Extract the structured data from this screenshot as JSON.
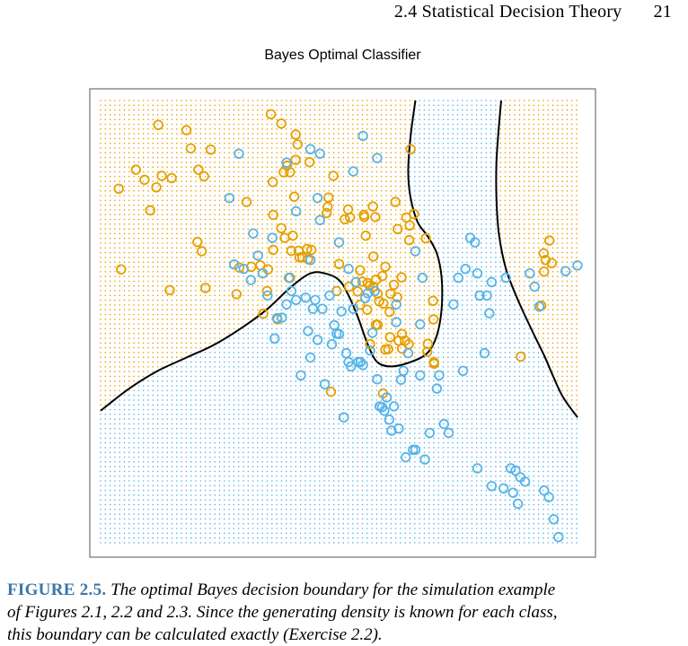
{
  "header": {
    "section": "2.4 Statistical Decision Theory",
    "page_number": "21"
  },
  "caption": {
    "label": "FIGURE 2.5.",
    "lines": [
      "The optimal Bayes decision boundary for the simulation example",
      "of Figures 2.1, 2.2 and 2.3. Since the generating density is known for each class,",
      "this boundary can be calculated exactly (Exercise 2.2)."
    ]
  },
  "colors": {
    "orange": "#e69f00",
    "blue": "#56b4e9",
    "boundary": "#000000",
    "frame": "#555555"
  },
  "chart_data": {
    "type": "scatter",
    "title": "Bayes Optimal Classifier",
    "xlabel": "",
    "ylabel": "",
    "xlim": [
      0,
      100
    ],
    "ylim": [
      0,
      100
    ],
    "grid": false,
    "legend": "none",
    "series": [
      {
        "color_key": "orange",
        "points": [
          [
            3.8,
            80.1
          ],
          [
            4.3,
            61.9
          ],
          [
            7.4,
            84.4
          ],
          [
            9.2,
            82.1
          ],
          [
            10.4,
            75.2
          ],
          [
            11.7,
            80.4
          ],
          [
            12.1,
            94.5
          ],
          [
            12.8,
            83.0
          ],
          [
            14.5,
            57.2
          ],
          [
            14.9,
            82.5
          ],
          [
            18.0,
            93.3
          ],
          [
            18.9,
            89.2
          ],
          [
            20.3,
            68.1
          ],
          [
            20.5,
            84.4
          ],
          [
            21.2,
            66.0
          ],
          [
            21.7,
            82.9
          ],
          [
            22.0,
            57.7
          ],
          [
            23.1,
            88.9
          ],
          [
            28.5,
            56.3
          ],
          [
            29.1,
            62.3
          ],
          [
            30.6,
            77.1
          ],
          [
            31.6,
            62.5
          ],
          [
            33.5,
            62.8
          ],
          [
            34.1,
            51.9
          ],
          [
            34.9,
            57.0
          ],
          [
            35.1,
            61.9
          ],
          [
            35.7,
            96.9
          ],
          [
            36.1,
            81.6
          ],
          [
            36.2,
            66.3
          ],
          [
            36.2,
            74.2
          ],
          [
            37.1,
            50.6
          ],
          [
            37.9,
            71.2
          ],
          [
            37.9,
            94.8
          ],
          [
            38.4,
            83.8
          ],
          [
            38.6,
            69.0
          ],
          [
            39.1,
            85.3
          ],
          [
            39.7,
            83.8
          ],
          [
            39.7,
            60.0
          ],
          [
            40.0,
            66.1
          ],
          [
            40.3,
            69.5
          ],
          [
            40.6,
            78.3
          ],
          [
            40.9,
            86.6
          ],
          [
            40.9,
            92.3
          ],
          [
            41.3,
            90.1
          ],
          [
            41.5,
            66.1
          ],
          [
            41.7,
            64.6
          ],
          [
            42.3,
            64.6
          ],
          [
            43.3,
            66.5
          ],
          [
            43.5,
            64.2
          ],
          [
            43.8,
            86.1
          ],
          [
            44.2,
            66.3
          ],
          [
            47.4,
            74.6
          ],
          [
            47.6,
            76.0
          ],
          [
            47.8,
            78.1
          ],
          [
            48.3,
            34.3
          ],
          [
            48.8,
            83.0
          ],
          [
            49.5,
            57.0
          ],
          [
            50.0,
            63.1
          ],
          [
            51.2,
            73.2
          ],
          [
            51.9,
            75.4
          ],
          [
            52.1,
            58.0
          ],
          [
            52.3,
            73.6
          ],
          [
            53.9,
            56.9
          ],
          [
            54.4,
            61.7
          ],
          [
            54.4,
            53.9
          ],
          [
            54.9,
            59.1
          ],
          [
            55.2,
            74.2
          ],
          [
            55.3,
            73.7
          ],
          [
            55.6,
            69.5
          ],
          [
            55.9,
            52.8
          ],
          [
            56.0,
            58.8
          ],
          [
            56.4,
            58.2
          ],
          [
            56.5,
            45.0
          ],
          [
            57.1,
            76.1
          ],
          [
            57.2,
            64.8
          ],
          [
            57.2,
            58.0
          ],
          [
            57.6,
            73.7
          ],
          [
            57.7,
            49.4
          ],
          [
            57.8,
            59.6
          ],
          [
            58.1,
            56.4
          ],
          [
            58.1,
            49.4
          ],
          [
            58.4,
            54.7
          ],
          [
            59.1,
            60.4
          ],
          [
            59.2,
            33.9
          ],
          [
            59.3,
            54.2
          ],
          [
            59.7,
            62.5
          ],
          [
            59.7,
            43.8
          ],
          [
            60.3,
            43.9
          ],
          [
            60.6,
            52.3
          ],
          [
            60.7,
            46.6
          ],
          [
            60.8,
            56.4
          ],
          [
            61.5,
            58.4
          ],
          [
            61.8,
            77.1
          ],
          [
            62.2,
            55.6
          ],
          [
            62.3,
            71.0
          ],
          [
            62.5,
            45.8
          ],
          [
            63.1,
            60.1
          ],
          [
            63.2,
            44.0
          ],
          [
            63.2,
            47.3
          ],
          [
            63.8,
            45.8
          ],
          [
            64.1,
            73.6
          ],
          [
            64.6,
            45.0
          ],
          [
            64.7,
            68.5
          ],
          [
            64.8,
            71.8
          ],
          [
            65.0,
            89.0
          ],
          [
            65.7,
            74.4
          ],
          [
            68.2,
            68.9
          ],
          [
            68.6,
            45.1
          ],
          [
            68.5,
            43.3
          ],
          [
            69.7,
            54.8
          ],
          [
            69.8,
            50.6
          ],
          [
            69.9,
            40.6
          ],
          [
            69.9,
            41.0
          ],
          [
            88.1,
            42.2
          ],
          [
            92.4,
            53.7
          ],
          [
            92.9,
            65.5
          ],
          [
            93.0,
            61.4
          ],
          [
            93.3,
            64.0
          ],
          [
            94.1,
            68.4
          ],
          [
            94.6,
            63.3
          ]
        ]
      },
      {
        "color_key": "blue",
        "points": [
          [
            27.0,
            78.0
          ],
          [
            28.0,
            63.0
          ],
          [
            30.0,
            62.0
          ],
          [
            31.5,
            59.5
          ],
          [
            32.0,
            70.0
          ],
          [
            33.0,
            65.0
          ],
          [
            34.0,
            61.0
          ],
          [
            35.0,
            56.0
          ],
          [
            36.5,
            46.3
          ],
          [
            37.0,
            50.9
          ],
          [
            38.0,
            51.0
          ],
          [
            39.0,
            54.0
          ],
          [
            39.5,
            60.0
          ],
          [
            40.0,
            57.0
          ],
          [
            41.0,
            55.0
          ],
          [
            42.0,
            38.0
          ],
          [
            43.0,
            55.5
          ],
          [
            44.0,
            42.0
          ],
          [
            45.0,
            55.0
          ],
          [
            45.5,
            78.0
          ],
          [
            46.0,
            73.0
          ],
          [
            46.5,
            53.0
          ],
          [
            47.0,
            36.0
          ],
          [
            48.5,
            45.0
          ],
          [
            49.0,
            49.3
          ],
          [
            49.5,
            47.4
          ],
          [
            50.0,
            47.3
          ],
          [
            50.5,
            52.4
          ],
          [
            51.0,
            28.5
          ],
          [
            51.5,
            43.0
          ],
          [
            52.0,
            41.0
          ],
          [
            52.5,
            40.0
          ],
          [
            53.0,
            53.0
          ],
          [
            54.0,
            41.0
          ],
          [
            54.5,
            41.0
          ],
          [
            55.0,
            40.3
          ],
          [
            55.5,
            55.4
          ],
          [
            56.0,
            56.5
          ],
          [
            56.5,
            43.6
          ],
          [
            57.0,
            47.6
          ],
          [
            58.0,
            37.1
          ],
          [
            58.5,
            31.0
          ],
          [
            59.0,
            30.8
          ],
          [
            59.5,
            30.0
          ],
          [
            60.0,
            33.0
          ],
          [
            60.5,
            28.0
          ],
          [
            61.0,
            25.5
          ],
          [
            61.5,
            31.0
          ],
          [
            62.5,
            26.0
          ],
          [
            63.0,
            37.0
          ],
          [
            63.5,
            39.0
          ],
          [
            64.0,
            19.5
          ],
          [
            65.5,
            21.2
          ],
          [
            66.0,
            21.2
          ],
          [
            68.0,
            19.0
          ],
          [
            69.0,
            25.0
          ],
          [
            70.5,
            35.0
          ],
          [
            72.0,
            27.0
          ],
          [
            73.0,
            25.0
          ],
          [
            74.0,
            54.0
          ],
          [
            75.0,
            60.0
          ],
          [
            76.0,
            39.0
          ],
          [
            76.5,
            62.0
          ],
          [
            77.5,
            69.0
          ],
          [
            78.5,
            68.0
          ],
          [
            79.0,
            61.0
          ],
          [
            79.5,
            56.0
          ],
          [
            80.5,
            43.0
          ],
          [
            81.0,
            56.0
          ],
          [
            81.5,
            52.0
          ],
          [
            82.0,
            59.0
          ],
          [
            85.0,
            60.0
          ],
          [
            86.0,
            17.0
          ],
          [
            87.0,
            16.5
          ],
          [
            88.0,
            15.0
          ],
          [
            89.0,
            14.0
          ],
          [
            90.0,
            61.0
          ],
          [
            91.0,
            58.0
          ],
          [
            92.0,
            53.5
          ],
          [
            93.0,
            12.0
          ],
          [
            94.0,
            10.5
          ],
          [
            95.0,
            5.5
          ],
          [
            96.0,
            1.5
          ],
          [
            97.5,
            61.5
          ],
          [
            100.0,
            62.8
          ],
          [
            41.0,
            75.0
          ],
          [
            44.0,
            64.0
          ],
          [
            50.0,
            68.0
          ],
          [
            52.0,
            62.0
          ],
          [
            53.5,
            59.0
          ],
          [
            66.0,
            66.0
          ],
          [
            67.5,
            60.0
          ],
          [
            58.0,
            87.0
          ],
          [
            55.0,
            92.0
          ],
          [
            53.0,
            84.0
          ],
          [
            46.0,
            88.0
          ],
          [
            39.0,
            86.0
          ],
          [
            29.0,
            88.0
          ],
          [
            44.0,
            89.0
          ],
          [
            67.0,
            38.0
          ],
          [
            71.0,
            38.0
          ],
          [
            79.0,
            17.0
          ],
          [
            82.0,
            13.0
          ],
          [
            84.5,
            12.5
          ],
          [
            86.5,
            11.5
          ],
          [
            87.5,
            9.0
          ],
          [
            36.0,
            69.0
          ],
          [
            48.0,
            56.0
          ],
          [
            43.5,
            48.0
          ],
          [
            45.5,
            46.0
          ],
          [
            44.5,
            53.0
          ],
          [
            57.5,
            57.0
          ],
          [
            62.0,
            50.0
          ],
          [
            67.0,
            49.5
          ],
          [
            62.0,
            54.0
          ],
          [
            64.5,
            43.0
          ]
        ]
      }
    ],
    "boundary": [
      [
        [
          0.0,
          30.0
        ],
        [
          6.0,
          35.0
        ],
        [
          12.0,
          39.0
        ],
        [
          18.0,
          42.0
        ],
        [
          24.0,
          45.0
        ],
        [
          30.0,
          49.0
        ],
        [
          35.0,
          53.0
        ],
        [
          40.0,
          58.0
        ],
        [
          44.0,
          61.0
        ],
        [
          47.0,
          61.0
        ],
        [
          50.0,
          59.5
        ],
        [
          52.0,
          56.0
        ],
        [
          54.0,
          51.0
        ],
        [
          56.0,
          45.0
        ],
        [
          58.0,
          41.0
        ],
        [
          61.0,
          40.0
        ],
        [
          65.0,
          41.0
        ],
        [
          68.5,
          43.0
        ],
        [
          70.5,
          47.0
        ],
        [
          71.5,
          53.0
        ],
        [
          71.5,
          60.0
        ],
        [
          70.5,
          65.5
        ],
        [
          68.5,
          69.5
        ],
        [
          66.5,
          72.5
        ],
        [
          65.0,
          78.0
        ],
        [
          64.5,
          84.0
        ],
        [
          65.0,
          92.0
        ],
        [
          66.0,
          100.0
        ]
      ],
      [
        [
          84.0,
          100.0
        ],
        [
          83.5,
          94.0
        ],
        [
          83.0,
          86.0
        ],
        [
          83.0,
          78.0
        ],
        [
          83.5,
          70.0
        ],
        [
          85.0,
          62.0
        ],
        [
          87.5,
          55.0
        ],
        [
          90.5,
          48.0
        ],
        [
          93.0,
          42.5
        ],
        [
          95.0,
          37.5
        ],
        [
          97.0,
          33.0
        ],
        [
          100.0,
          28.5
        ]
      ]
    ]
  }
}
